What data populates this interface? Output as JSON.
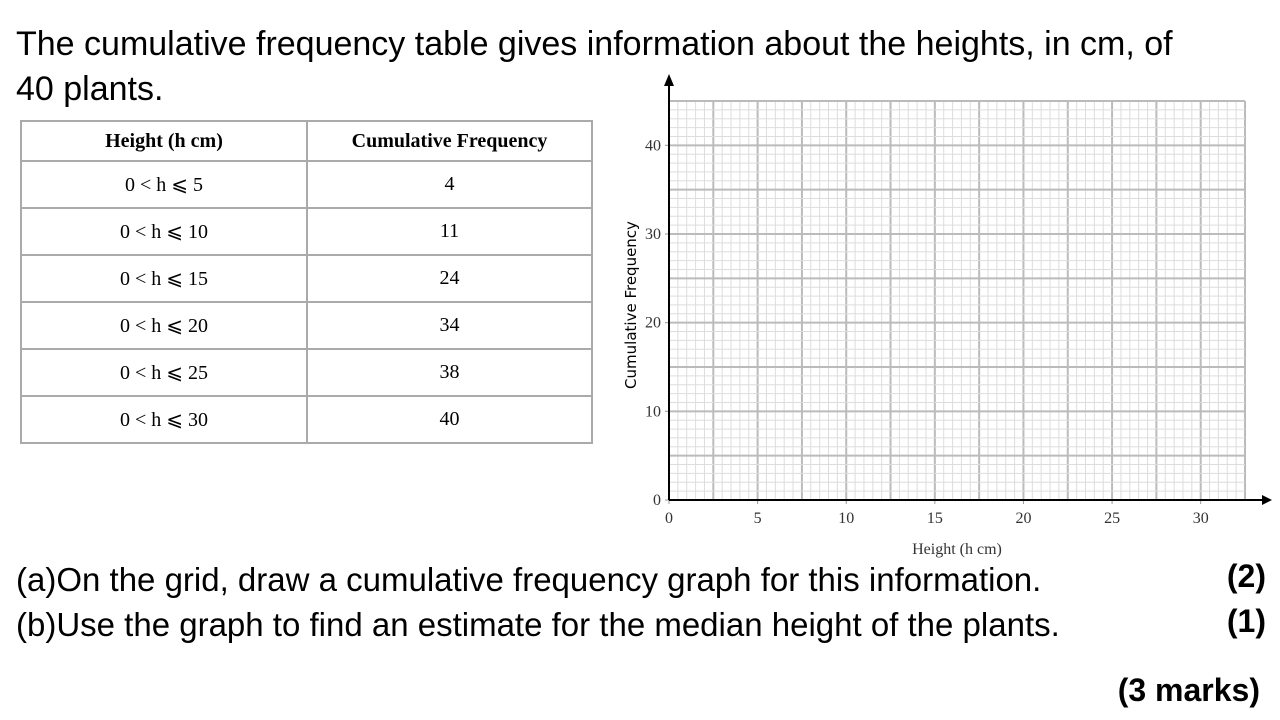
{
  "intro": "The cumulative frequency table gives information about the heights, in cm, of 40 plants.",
  "table": {
    "headers": [
      "Height (h cm)",
      "Cumulative Frequency"
    ],
    "rows": [
      [
        "0 < h ⩽ 5",
        "4"
      ],
      [
        "0 < h ⩽ 10",
        "11"
      ],
      [
        "0 < h ⩽ 15",
        "24"
      ],
      [
        "0 < h ⩽ 20",
        "34"
      ],
      [
        "0 < h ⩽ 25",
        "38"
      ],
      [
        "0 < h ⩽ 30",
        "40"
      ]
    ]
  },
  "grid": {
    "x_label": "Height (h cm)",
    "y_label": "Cumulative Frequency",
    "xlim": [
      0,
      32.5
    ],
    "ylim": [
      0,
      45
    ],
    "xticks": [
      0,
      5,
      10,
      15,
      20,
      25,
      30
    ],
    "yticks": [
      0,
      10,
      20,
      30,
      40
    ]
  },
  "questions": [
    {
      "text": "(a)On the grid, draw a cumulative frequency graph for this information.",
      "marks": "(2)"
    },
    {
      "text": "(b)Use the graph to find an estimate for the median height of the plants.",
      "marks": "(1)"
    }
  ],
  "total": "(3 marks)"
}
